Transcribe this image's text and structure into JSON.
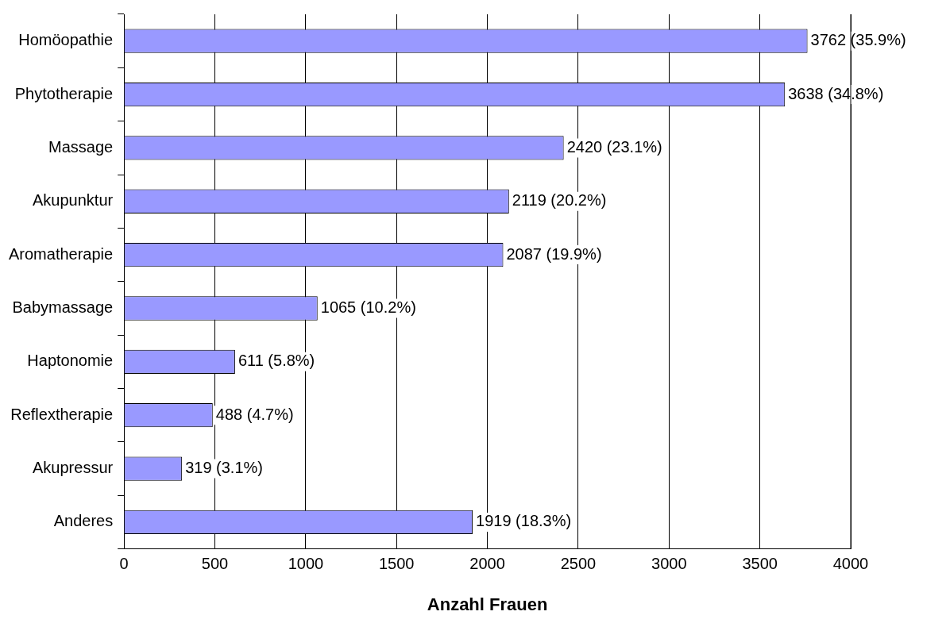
{
  "chart_data": {
    "type": "bar",
    "orientation": "horizontal",
    "xlabel": "Anzahl Frauen",
    "categories": [
      "Homöopathie",
      "Phytotherapie",
      "Massage",
      "Akupunktur",
      "Aromatherapie",
      "Babymassage",
      "Haptonomie",
      "Reflextherapie",
      "Akupressur",
      "Anderes"
    ],
    "values": [
      3762,
      3638,
      2420,
      2119,
      2087,
      1065,
      611,
      488,
      319,
      1919
    ],
    "value_labels": [
      "3762 (35.9%)",
      "3638 (34.8%)",
      "2420 (23.1%)",
      "2119 (20.2%)",
      "2087 (19.9%)",
      "1065 (10.2%)",
      "611 (5.8%)",
      "488 (4.7%)",
      "319 (3.1%)",
      "1919 (18.3%)"
    ],
    "color": "#9999ff",
    "xlim": [
      0,
      4000
    ],
    "xticks": [
      0,
      500,
      1000,
      1500,
      2000,
      2500,
      3000,
      3500,
      4000
    ],
    "grid": "x",
    "legend": false
  }
}
